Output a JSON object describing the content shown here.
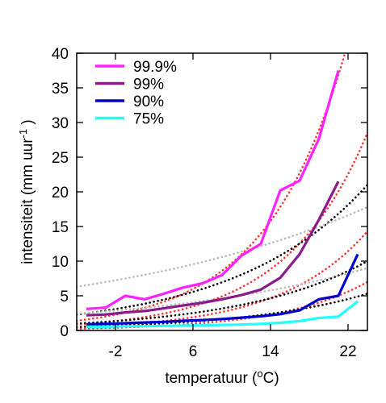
{
  "chart_data": {
    "type": "line",
    "xlabel": "temperatuur (",
    "xlabel_sup": "o",
    "xlabel_end": "C)",
    "ylabel": "intensiteit (mm uur",
    "ylabel_sup": "-1",
    "ylabel_end": " )",
    "xlim": [
      -6,
      24
    ],
    "ylim": [
      0,
      40
    ],
    "xticks": [
      -2,
      6,
      14,
      22
    ],
    "xtick_labels": [
      "-2",
      "6",
      "14",
      "22"
    ],
    "yticks": [
      0,
      5,
      10,
      15,
      20,
      25,
      30,
      35,
      40
    ],
    "ytick_labels": [
      "0",
      "5",
      "10",
      "15",
      "20",
      "25",
      "30",
      "35",
      "40"
    ],
    "grid": false,
    "legend_position": "top-left",
    "series": [
      {
        "name": "99.9%",
        "color": "#ff22ff",
        "x": [
          -5,
          -3,
          -1,
          1,
          3,
          5,
          7,
          9,
          11,
          13,
          15,
          17,
          19,
          21
        ],
        "y": [
          3.1,
          3.3,
          5.0,
          4.5,
          5.3,
          6.2,
          6.8,
          8.0,
          10.8,
          12.5,
          20.2,
          21.6,
          27.7,
          37.5
        ]
      },
      {
        "name": "99%",
        "color": "#8b1a8b",
        "x": [
          -5,
          -3,
          -1,
          1,
          3,
          5,
          7,
          9,
          11,
          13,
          15,
          17,
          19,
          21
        ],
        "y": [
          2.2,
          2.3,
          2.6,
          2.8,
          3.2,
          3.6,
          4.0,
          4.5,
          5.1,
          5.9,
          7.6,
          11.0,
          16.0,
          21.5
        ]
      },
      {
        "name": "90%",
        "color": "#0000cc",
        "x": [
          -5,
          -3,
          -1,
          1,
          3,
          5,
          7,
          9,
          11,
          13,
          15,
          17,
          19,
          21,
          23
        ],
        "y": [
          0.9,
          0.95,
          1.05,
          1.15,
          1.25,
          1.4,
          1.5,
          1.65,
          1.85,
          2.05,
          2.35,
          2.9,
          4.5,
          5.0,
          11.0
        ]
      },
      {
        "name": "75%",
        "color": "#22ffff",
        "x": [
          -5,
          -3,
          -1,
          1,
          3,
          5,
          7,
          9,
          11,
          13,
          15,
          17,
          19,
          21,
          23
        ],
        "y": [
          0.5,
          0.55,
          0.6,
          0.62,
          0.66,
          0.7,
          0.75,
          0.8,
          0.85,
          0.95,
          1.1,
          1.35,
          1.8,
          2.0,
          4.2
        ]
      }
    ],
    "reference_curves": [
      {
        "color": "#ff3333",
        "style": "dotted",
        "y_at_xmin": 1.4,
        "y_at_xmax": 53
      },
      {
        "color": "#ff3333",
        "style": "dotted",
        "y_at_xmin": 0.85,
        "y_at_xmax": 28.5
      },
      {
        "color": "#ff3333",
        "style": "dotted",
        "y_at_xmin": 0.5,
        "y_at_xmax": 14.3
      },
      {
        "color": "#ff3333",
        "style": "dotted",
        "y_at_xmin": 0.25,
        "y_at_xmax": 7.0
      },
      {
        "color": "#000000",
        "style": "dotted",
        "y_at_xmin": 2.3,
        "y_at_xmax": 21.0
      },
      {
        "color": "#000000",
        "style": "dotted",
        "y_at_xmin": 1.0,
        "y_at_xmax": 10.0
      },
      {
        "color": "#000000",
        "style": "dotted",
        "y_at_xmin": 0.5,
        "y_at_xmax": 5.3
      },
      {
        "color": "#bbbbbb",
        "style": "dotted",
        "y_at_xmin": 6.3,
        "y_at_xmax": 17.8
      },
      {
        "color": "#bbbbbb",
        "style": "dotted",
        "y_at_xmin": 2.4,
        "y_at_xmax": 9.0
      }
    ]
  }
}
